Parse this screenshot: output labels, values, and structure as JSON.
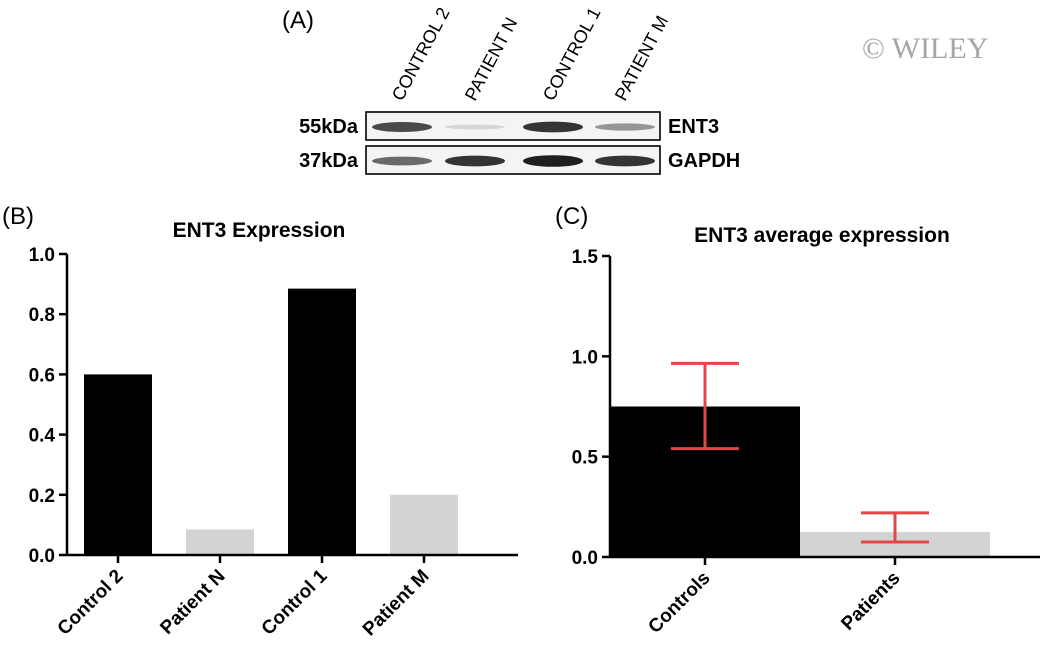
{
  "watermark": "© WILEY",
  "panel_a": {
    "label": "(A)",
    "lanes": [
      "CONTROL 2",
      "PATIENT N",
      "CONTROL 1",
      "PATIENT M"
    ],
    "rows": [
      {
        "marker": "55kDa",
        "protein": "ENT3",
        "band_intensity": [
          0.75,
          0.1,
          0.85,
          0.4
        ]
      },
      {
        "marker": "37kDa",
        "protein": "GAPDH",
        "band_intensity": [
          0.6,
          0.85,
          0.95,
          0.85
        ]
      }
    ]
  },
  "chart_data": [
    {
      "panel_label": "(B)",
      "type": "bar",
      "title": "ENT3 Expression",
      "categories": [
        "Control 2",
        "Patient N",
        "Control 1",
        "Patient M"
      ],
      "values": [
        0.6,
        0.085,
        0.885,
        0.2
      ],
      "bar_colors": [
        "#000000",
        "#d3d3d3",
        "#000000",
        "#d3d3d3"
      ],
      "ylim": [
        0,
        1.0
      ],
      "yticks": [
        "0.0",
        "0.2",
        "0.4",
        "0.6",
        "0.8",
        "1.0"
      ],
      "xlabel": "",
      "ylabel": "",
      "grid": false
    },
    {
      "panel_label": "(C)",
      "type": "bar",
      "title": "ENT3 average expression",
      "categories": [
        "Controls",
        "Patients"
      ],
      "values": [
        0.75,
        0.125
      ],
      "error_low": [
        0.54,
        0.075
      ],
      "error_high": [
        0.965,
        0.22
      ],
      "bar_colors": [
        "#000000",
        "#d3d3d3"
      ],
      "error_color": "#e04848",
      "ylim": [
        0,
        1.5
      ],
      "yticks": [
        "0.0",
        "0.5",
        "1.0",
        "1.5"
      ],
      "xlabel": "",
      "ylabel": "",
      "grid": false
    }
  ]
}
